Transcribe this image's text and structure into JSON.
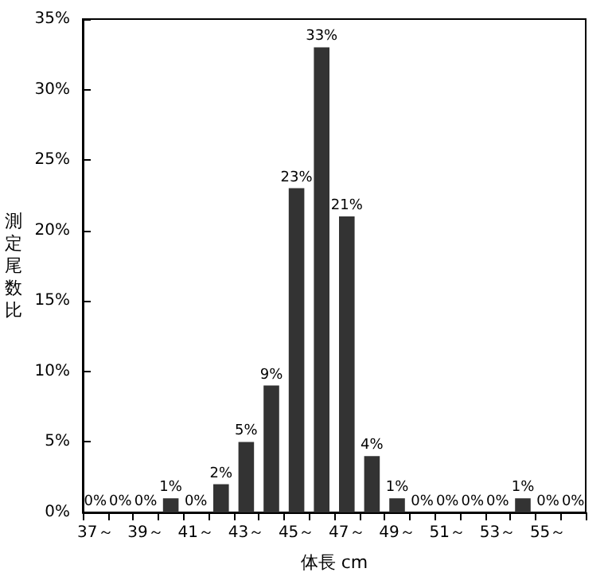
{
  "chart_data": {
    "type": "bar",
    "xlabel": "体長 cm",
    "ylabel": "測定尾数比",
    "categories": [
      "37～",
      null,
      "39～",
      null,
      "41～",
      null,
      "43～",
      null,
      "45～",
      null,
      "47～",
      null,
      "49～",
      null,
      "51～",
      null,
      "53～",
      null,
      "55～",
      null
    ],
    "values": [
      0,
      0,
      0,
      1,
      0,
      2,
      5,
      9,
      23,
      33,
      21,
      4,
      1,
      0,
      0,
      0,
      0,
      1,
      0,
      0
    ],
    "value_labels": [
      "0%",
      "0%",
      "0%",
      "1%",
      "0%",
      "2%",
      "5%",
      "9%",
      "23%",
      "33%",
      "21%",
      "4%",
      "1%",
      "0%",
      "0%",
      "0%",
      "0%",
      "1%",
      "0%",
      "0%"
    ],
    "color": "#333333",
    "ylim": [
      0,
      35
    ],
    "yticks": [
      {
        "value": 0,
        "label": "0%"
      },
      {
        "value": 5,
        "label": "5%"
      },
      {
        "value": 10,
        "label": "10%"
      },
      {
        "value": 15,
        "label": "15%"
      },
      {
        "value": 20,
        "label": "20%"
      },
      {
        "value": 25,
        "label": "25%"
      },
      {
        "value": 30,
        "label": "30%"
      },
      {
        "value": 35,
        "label": "35%"
      }
    ],
    "grid": false
  }
}
